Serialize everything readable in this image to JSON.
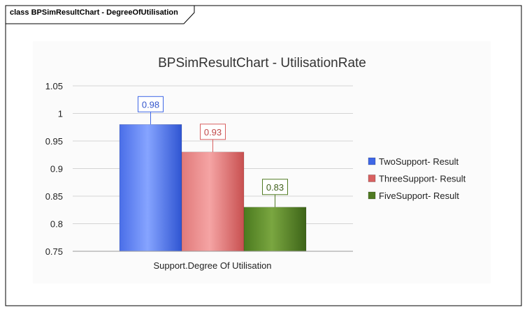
{
  "diagram": {
    "tab_label": "class BPSimResultChart - DegreeOfUtilisation"
  },
  "chart_data": {
    "type": "bar",
    "title": "BPSimResultChart - UtilisationRate",
    "xlabel": "",
    "ylabel": "",
    "categories": [
      "Support.Degree Of Utilisation"
    ],
    "series": [
      {
        "name": "TwoSupport- Result",
        "values": [
          0.98
        ],
        "color": "#3f67e6"
      },
      {
        "name": "ThreeSupport- Result",
        "values": [
          0.93
        ],
        "color": "#d86060"
      },
      {
        "name": "FiveSupport- Result",
        "values": [
          0.83
        ],
        "color": "#4f7a22"
      }
    ],
    "ylim": [
      0.75,
      1.05
    ],
    "yticks": [
      "1.05",
      "1",
      "0.95",
      "0.9",
      "0.85",
      "0.8",
      "0.75"
    ],
    "yticks_values": [
      1.05,
      1.0,
      0.95,
      0.9,
      0.85,
      0.8,
      0.75
    ],
    "data_labels": [
      "0.98",
      "0.93",
      "0.83"
    ],
    "grid": true,
    "legend": "right"
  }
}
